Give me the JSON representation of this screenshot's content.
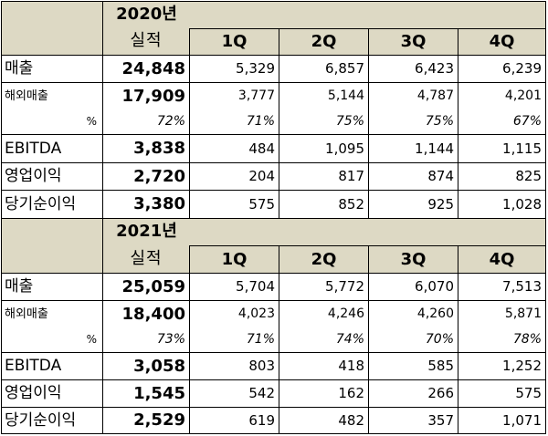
{
  "blocks": [
    {
      "year": "2020년",
      "actual_label": "실적",
      "quarters": [
        "1Q",
        "2Q",
        "3Q",
        "4Q"
      ],
      "rows": [
        {
          "label": "매출",
          "total": "24,848",
          "q": [
            "5,329",
            "6,857",
            "6,423",
            "6,239"
          ]
        },
        {
          "label": "해외매출",
          "total": "17,909",
          "q": [
            "3,777",
            "5,144",
            "4,787",
            "4,201"
          ]
        },
        {
          "label": "%",
          "total": "72%",
          "q": [
            "71%",
            "75%",
            "75%",
            "67%"
          ]
        },
        {
          "label": "EBITDA",
          "total": "3,838",
          "q": [
            "484",
            "1,095",
            "1,144",
            "1,115"
          ]
        },
        {
          "label": "영업이익",
          "total": "2,720",
          "q": [
            "204",
            "817",
            "874",
            "825"
          ]
        },
        {
          "label": "당기순이익",
          "total": "3,380",
          "q": [
            "575",
            "852",
            "925",
            "1,028"
          ]
        }
      ]
    },
    {
      "year": "2021년",
      "actual_label": "실적",
      "quarters": [
        "1Q",
        "2Q",
        "3Q",
        "4Q"
      ],
      "rows": [
        {
          "label": "매출",
          "total": "25,059",
          "q": [
            "5,704",
            "5,772",
            "6,070",
            "7,513"
          ]
        },
        {
          "label": "해외매출",
          "total": "18,400",
          "q": [
            "4,023",
            "4,246",
            "4,260",
            "5,871"
          ]
        },
        {
          "label": "%",
          "total": "73%",
          "q": [
            "71%",
            "74%",
            "70%",
            "78%"
          ]
        },
        {
          "label": "EBITDA",
          "total": "3,058",
          "q": [
            "803",
            "418",
            "585",
            "1,252"
          ]
        },
        {
          "label": "영업이익",
          "total": "1,545",
          "q": [
            "542",
            "162",
            "266",
            "575"
          ]
        },
        {
          "label": "당기순이익",
          "total": "2,529",
          "q": [
            "619",
            "482",
            "357",
            "1,071"
          ]
        }
      ]
    }
  ]
}
